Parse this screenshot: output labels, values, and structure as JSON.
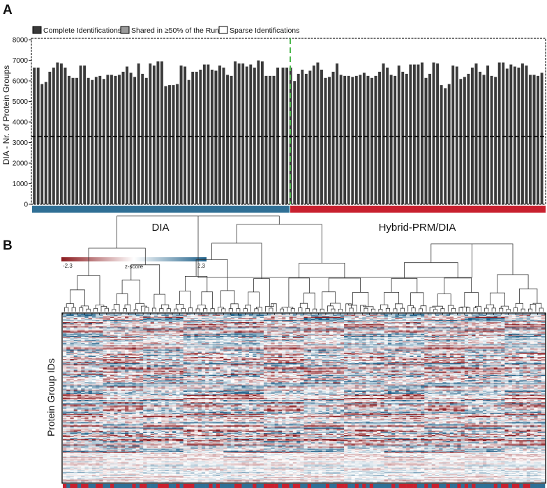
{
  "figure": {
    "panel_a_letter": "A",
    "panel_b_letter": "B"
  },
  "chart_data": [
    {
      "type": "bar",
      "panel": "A",
      "ylabel": "DIA - Nr. of Protein Groups",
      "ylim": [
        0,
        8000
      ],
      "yticks": [
        0,
        1000,
        2000,
        3000,
        4000,
        5000,
        6000,
        7000,
        8000
      ],
      "legend": {
        "placement": "top",
        "entries": [
          {
            "label": "Complete Identifications",
            "color": "#3a3a3a"
          },
          {
            "label": "Shared in ≥50% of the Runs",
            "color": "#9a9a9a"
          },
          {
            "label": "Sparse Identifications",
            "color": "#ffffff"
          }
        ]
      },
      "complete_identifications": 3300,
      "series": [
        {
          "name": "DIA",
          "color": "#2f6f95",
          "values": [
            6650,
            6650,
            5850,
            5950,
            6450,
            6650,
            6900,
            6850,
            6650,
            6250,
            6150,
            6150,
            6750,
            6750,
            6150,
            6050,
            6200,
            6250,
            6100,
            6300,
            6300,
            6250,
            6300,
            6450,
            6700,
            6400,
            6200,
            6850,
            6350,
            6150,
            6850,
            6750,
            6950,
            6950,
            5750,
            5800,
            5800,
            5850,
            6750,
            6700,
            6050,
            6450,
            6450,
            6550,
            6800,
            6800,
            6550,
            6500,
            6750,
            6650,
            6300,
            6250,
            6950,
            6850,
            6850,
            6700,
            6800,
            6650,
            7000,
            6950,
            6250,
            6250,
            6250,
            6650
          ]
        },
        {
          "name": "Hybrid-PRM/DIA",
          "color": "#c8202e",
          "values": [
            6650,
            6650,
            6650,
            6000,
            6350,
            6550,
            6350,
            6500,
            6750,
            6900,
            6550,
            6150,
            6200,
            6450,
            6850,
            6300,
            6250,
            6250,
            6200,
            6250,
            6300,
            6400,
            6250,
            6150,
            6250,
            6450,
            6850,
            6650,
            6300,
            6250,
            6750,
            6450,
            6350,
            6800,
            6800,
            6800,
            6900,
            6150,
            6350,
            6900,
            6850,
            5800,
            5650,
            5850,
            6750,
            6700,
            6100,
            6200,
            6350,
            6650,
            6850,
            6450,
            6300,
            6750,
            6250,
            6200,
            6900,
            6900,
            6600,
            6800,
            6700,
            6650,
            6850,
            6750,
            6300,
            6300,
            6250,
            6400
          ]
        }
      ]
    },
    {
      "type": "heatmap",
      "panel": "B",
      "ylabel": "Protein Group IDs",
      "colorbar": {
        "title": "z-score",
        "min_label": "-2.3",
        "max_label": "2.3",
        "min_color": "#8b1a1e",
        "mid_color": "#ffffff",
        "max_color": "#1d5f88"
      },
      "columns": 132,
      "rows": 160,
      "dendrogram": true
    }
  ]
}
